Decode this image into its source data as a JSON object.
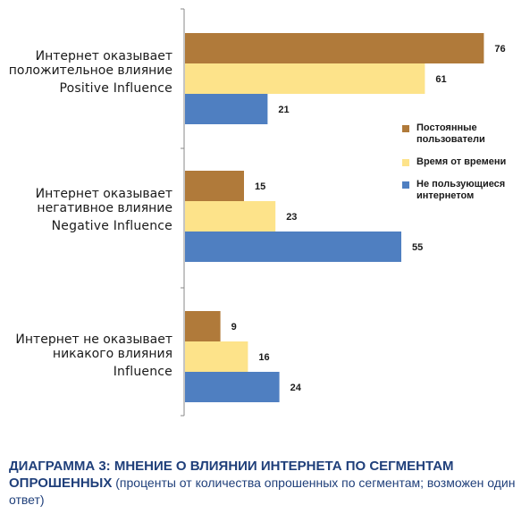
{
  "chart_data": {
    "type": "bar",
    "orientation": "horizontal",
    "categories": [
      {
        "line1": "Интернет оказывает",
        "line2": "положительное влияние",
        "line3": "Positive Influence"
      },
      {
        "line1": "Интернет оказывает",
        "line2": "негативное влияние",
        "line3": "Negative Influence"
      },
      {
        "line1": "Интернет не оказывает",
        "line2": "никакого влияния",
        "line3": "Influence"
      }
    ],
    "series": [
      {
        "name": "Постоянные пользователи",
        "values": [
          76,
          15,
          9
        ],
        "color": "#b07a3a"
      },
      {
        "name": "Время от времени",
        "values": [
          61,
          23,
          16
        ],
        "color": "#fde38a"
      },
      {
        "name": "Не пользующиеся интернетом",
        "values": [
          21,
          55,
          24
        ],
        "color": "#4f7fc1"
      }
    ],
    "legend_position": "right",
    "grid": false,
    "xlim": [
      0,
      80
    ]
  },
  "legend": {
    "items": [
      {
        "label": "Постоянные пользователи",
        "color": "#b07a3a"
      },
      {
        "label": "Время от времени",
        "color": "#fde38a"
      },
      {
        "label": "Не пользующиеся интернетом",
        "color": "#4f7fc1"
      }
    ]
  },
  "caption": {
    "title": "ДИАГРАММА 3: МНЕНИЕ О ВЛИЯНИИ ИНТЕРНЕТА ПО СЕГМЕНТАМ ОПРОШЕННЫХ",
    "subtitle": "(проценты от количества опрошенных по сегментам; возможен один ответ)"
  }
}
